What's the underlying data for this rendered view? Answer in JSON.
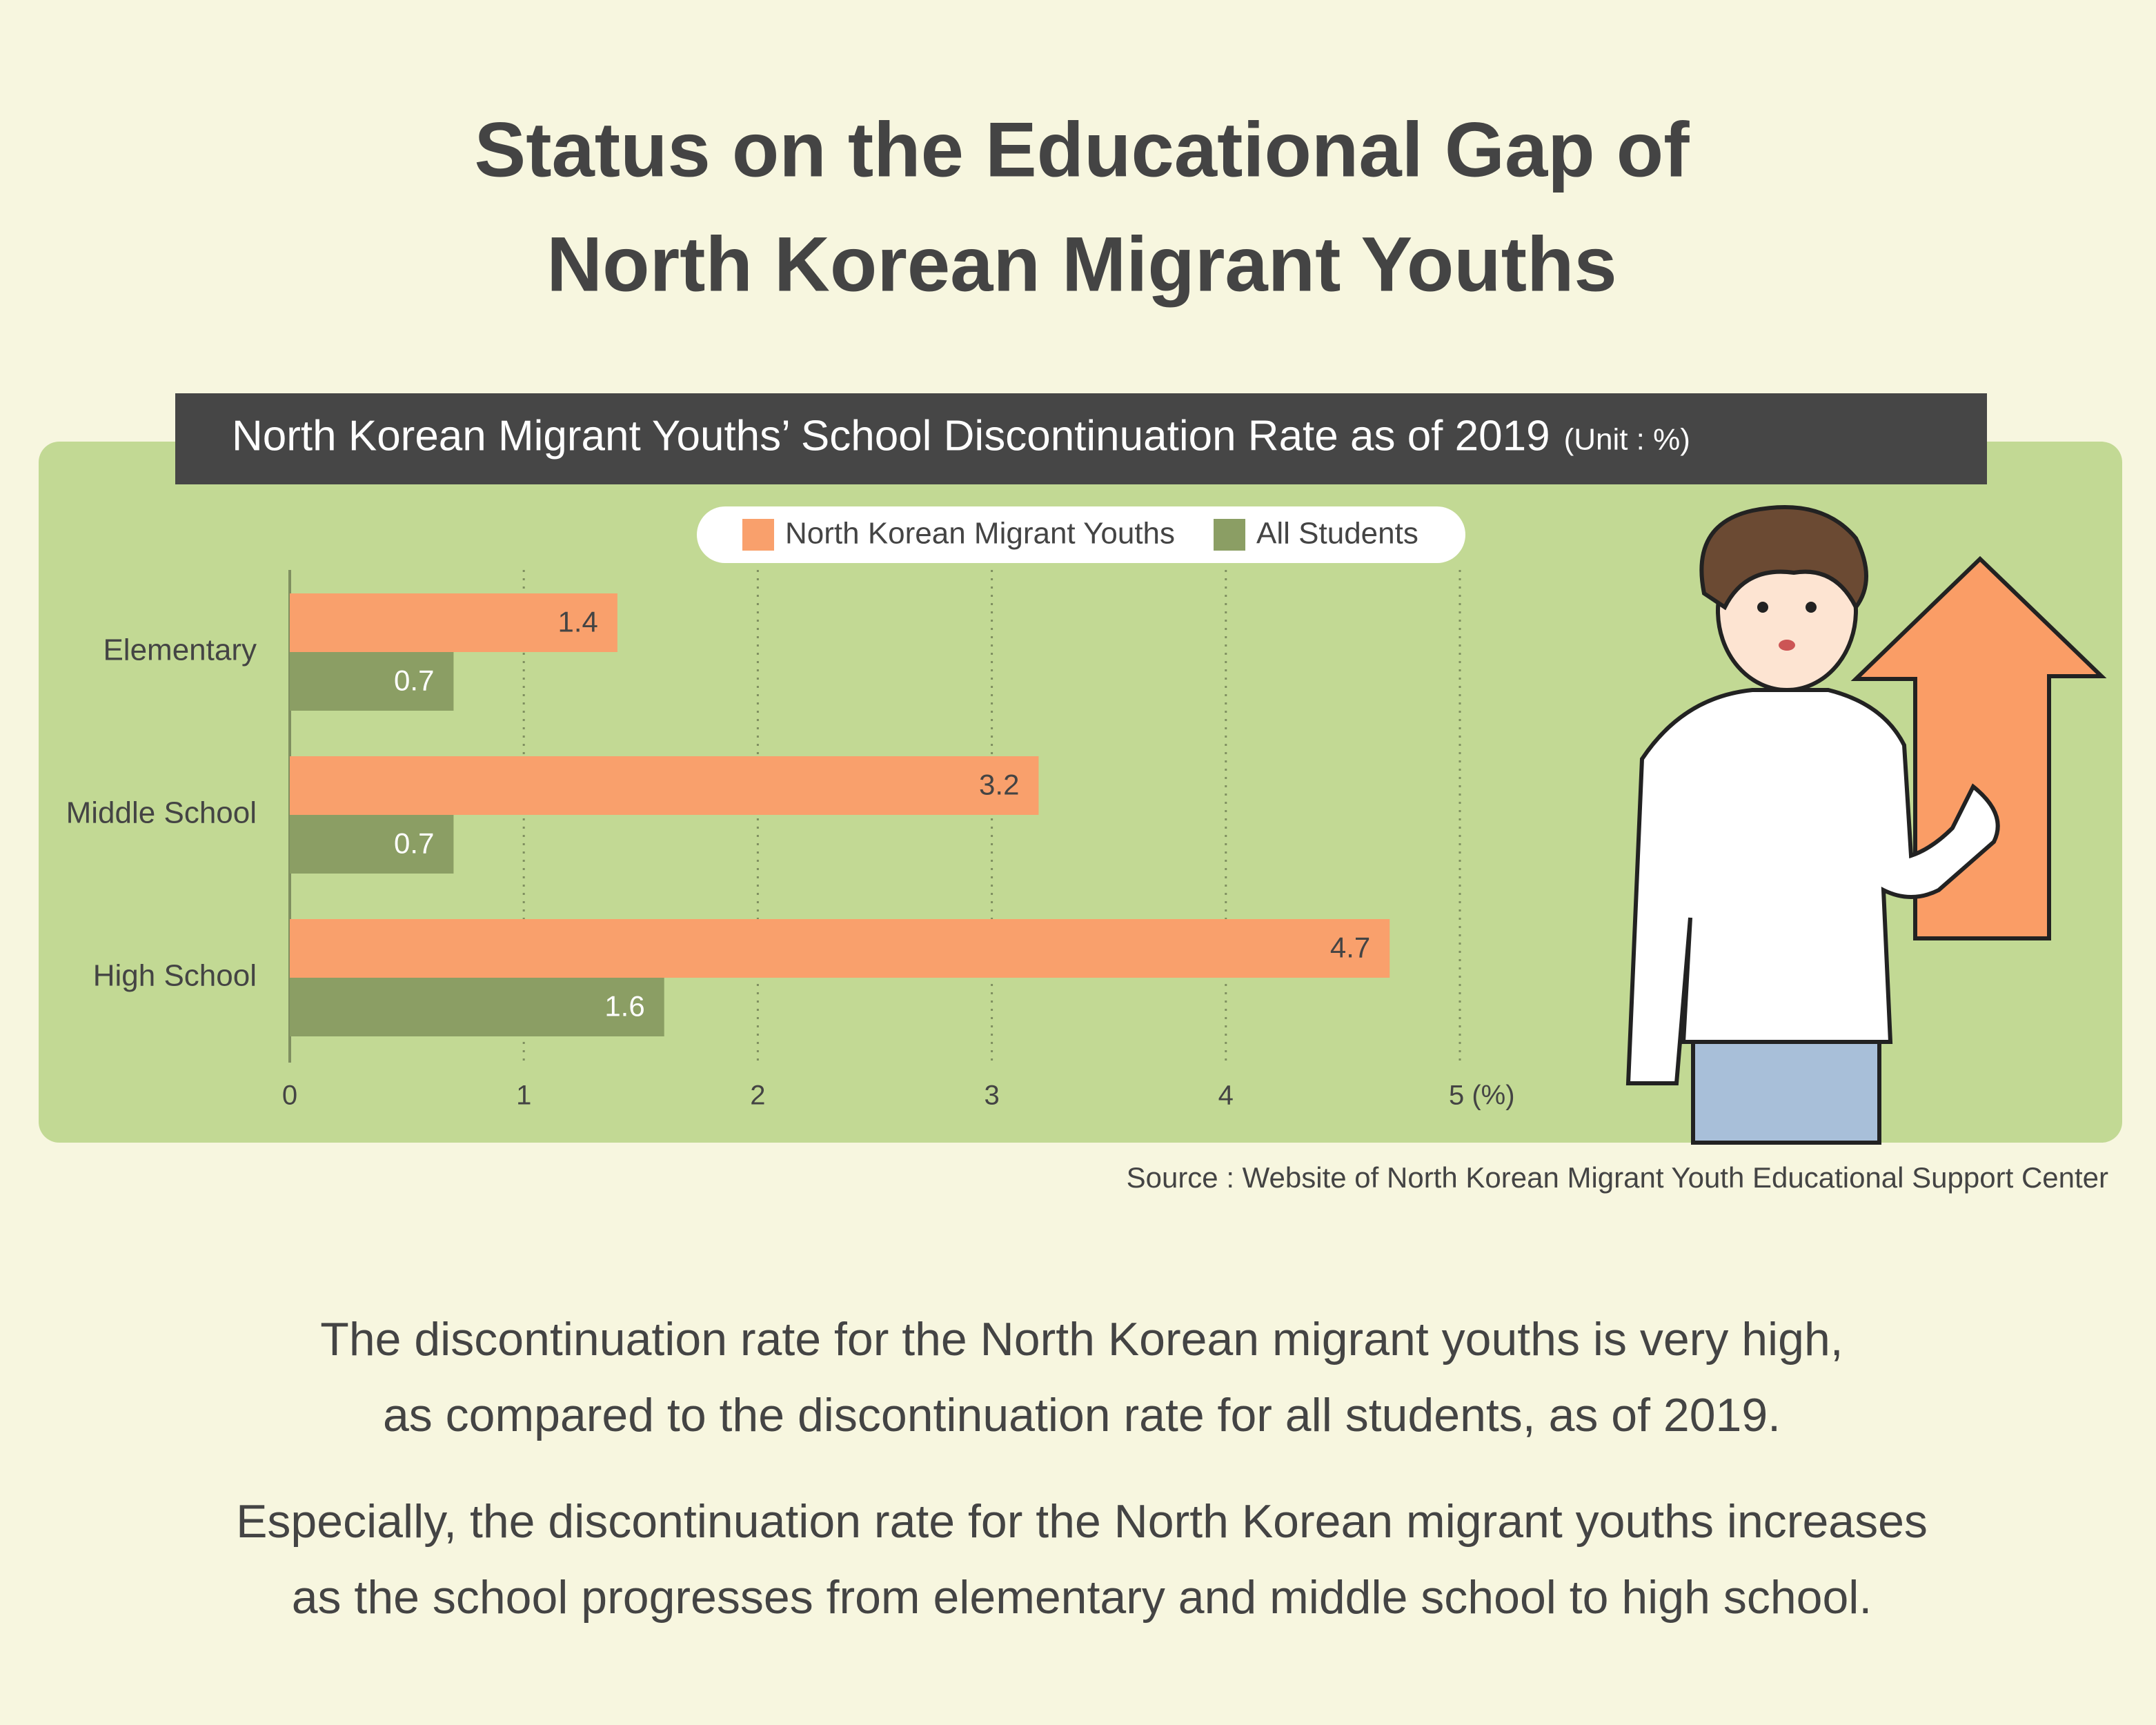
{
  "page_title": [
    "Status on the Educational Gap of",
    "North Korean Migrant Youths"
  ],
  "chart_data": {
    "type": "hbar",
    "title": "North Korean Migrant Youths’ School Discontinuation Rate as of 2019",
    "unit_note": "(Unit : %)",
    "categories": [
      "Elementary",
      "Middle School",
      "High School"
    ],
    "series": [
      {
        "name": "North Korean Migrant Youths",
        "color": "#f9a06c",
        "values": [
          1.4,
          3.2,
          4.7
        ]
      },
      {
        "name": "All Students",
        "color": "#8b9e64",
        "values": [
          0.7,
          0.7,
          1.6
        ]
      }
    ],
    "xlim": [
      0,
      5
    ],
    "xticks": [
      0,
      1,
      2,
      3,
      4,
      {
        "value": 5,
        "label": "5 (%)"
      }
    ],
    "grid": true
  },
  "source": "Source : Website of North Korean Migrant Youth Educational Support Center",
  "paragraphs": [
    [
      "The discontinuation rate for the North Korean migrant youths is very high,",
      "as compared to the discontinuation rate for all students, as of 2019."
    ],
    [
      "Especially, the discontinuation rate for the North Korean migrant youths increases",
      "as the school progresses from elementary and middle school to high school."
    ]
  ]
}
